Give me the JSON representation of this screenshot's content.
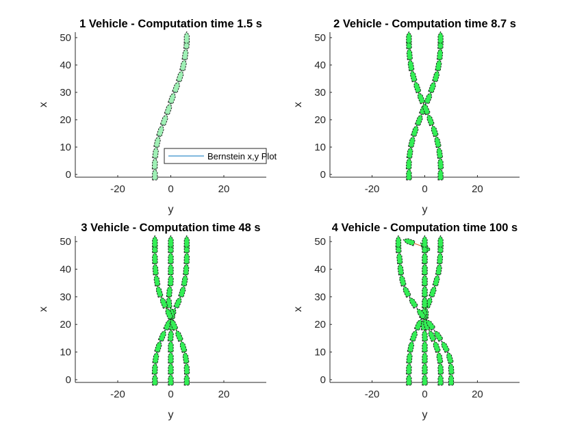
{
  "chart_data": [
    {
      "type": "line",
      "title": "1 Vehicle - Computation time 1.5 s",
      "xlabel": "y",
      "ylabel": "x",
      "xlim": [
        -36,
        36
      ],
      "ylim": [
        -1,
        52
      ],
      "xticks": [
        -20,
        0,
        20
      ],
      "yticks": [
        0,
        10,
        20,
        30,
        40,
        50
      ],
      "legend": {
        "label": "Bernstein x,y Plot",
        "location": "lower-right"
      },
      "series": [
        {
          "color": "#0072BD",
          "points": [
            [
              -6,
              0
            ],
            [
              -6,
              4
            ],
            [
              -5.7,
              8
            ],
            [
              -5,
              12
            ],
            [
              -3.8,
              16
            ],
            [
              -2.3,
              20
            ],
            [
              -0.8,
              24
            ],
            [
              0.6,
              28
            ],
            [
              2.2,
              32
            ],
            [
              3.6,
              36
            ],
            [
              4.8,
              40
            ],
            [
              5.5,
              44
            ],
            [
              6,
              48
            ],
            [
              6,
              50
            ]
          ]
        }
      ]
    },
    {
      "type": "line",
      "title": "2 Vehicle - Computation time 8.7 s",
      "xlabel": "y",
      "ylabel": "x",
      "xlim": [
        -36,
        36
      ],
      "ylim": [
        -1,
        52
      ],
      "xticks": [
        -20,
        0,
        20
      ],
      "yticks": [
        0,
        10,
        20,
        30,
        40,
        50
      ],
      "series": [
        {
          "color": "#0072BD",
          "points": [
            [
              -6,
              0
            ],
            [
              -6,
              4
            ],
            [
              -5.6,
              8
            ],
            [
              -4.8,
              12
            ],
            [
              -3.6,
              16
            ],
            [
              -2,
              20
            ],
            [
              -0.4,
              24
            ],
            [
              1.5,
              28
            ],
            [
              3,
              32
            ],
            [
              4.4,
              36
            ],
            [
              5.3,
              40
            ],
            [
              5.8,
              44
            ],
            [
              6,
              48
            ],
            [
              6,
              50
            ]
          ]
        },
        {
          "color": "#D95319",
          "points": [
            [
              6,
              0
            ],
            [
              6,
              4
            ],
            [
              5.6,
              8
            ],
            [
              4.8,
              12
            ],
            [
              3.6,
              16
            ],
            [
              2,
              20
            ],
            [
              0.4,
              24
            ],
            [
              -1.5,
              28
            ],
            [
              -3,
              32
            ],
            [
              -4.4,
              36
            ],
            [
              -5.3,
              40
            ],
            [
              -5.8,
              44
            ],
            [
              -6,
              48
            ],
            [
              -6,
              50
            ]
          ]
        }
      ]
    },
    {
      "type": "line",
      "title": "3 Vehicle - Computation time 48 s",
      "xlabel": "y",
      "ylabel": "x",
      "xlim": [
        -36,
        36
      ],
      "ylim": [
        -1,
        52
      ],
      "xticks": [
        -20,
        0,
        20
      ],
      "yticks": [
        0,
        10,
        20,
        30,
        40,
        50
      ],
      "series": [
        {
          "color": "#0072BD",
          "points": [
            [
              -6,
              0
            ],
            [
              -6,
              4
            ],
            [
              -5.6,
              8
            ],
            [
              -4.6,
              12
            ],
            [
              -3,
              16
            ],
            [
              -1,
              20
            ],
            [
              0.8,
              24
            ],
            [
              2.8,
              28
            ],
            [
              4.4,
              32
            ],
            [
              5.3,
              36
            ],
            [
              5.8,
              40
            ],
            [
              6,
              44
            ],
            [
              6,
              48
            ],
            [
              6,
              50
            ]
          ]
        },
        {
          "color": "#D95319",
          "points": [
            [
              0,
              0
            ],
            [
              0,
              4
            ],
            [
              0,
              8
            ],
            [
              0,
              12
            ],
            [
              0,
              16
            ],
            [
              0.6,
              20
            ],
            [
              0.3,
              24
            ],
            [
              -0.7,
              28
            ],
            [
              -0.5,
              32
            ],
            [
              0,
              36
            ],
            [
              0,
              40
            ],
            [
              0,
              44
            ],
            [
              0,
              48
            ],
            [
              0,
              50
            ]
          ]
        },
        {
          "color": "#EDB120",
          "points": [
            [
              6,
              0
            ],
            [
              6,
              4
            ],
            [
              5.6,
              8
            ],
            [
              4.6,
              12
            ],
            [
              3,
              16
            ],
            [
              1,
              20
            ],
            [
              -0.8,
              24
            ],
            [
              -2.8,
              28
            ],
            [
              -4.4,
              32
            ],
            [
              -5.3,
              36
            ],
            [
              -5.8,
              40
            ],
            [
              -6,
              44
            ],
            [
              -6,
              48
            ],
            [
              -6,
              50
            ]
          ]
        }
      ]
    },
    {
      "type": "line",
      "title": "4 Vehicle - Computation time 100 s",
      "xlabel": "y",
      "ylabel": "x",
      "xlim": [
        -36,
        36
      ],
      "ylim": [
        -1,
        52
      ],
      "xticks": [
        -20,
        0,
        20
      ],
      "yticks": [
        0,
        10,
        20,
        30,
        40,
        50
      ],
      "series": [
        {
          "color": "#0072BD",
          "points": [
            [
              -6,
              0
            ],
            [
              -6,
              4
            ],
            [
              -5.8,
              8
            ],
            [
              -5.2,
              12
            ],
            [
              -4,
              16
            ],
            [
              -2.2,
              20
            ],
            [
              -0.3,
              24
            ],
            [
              1.6,
              28
            ],
            [
              3.2,
              32
            ],
            [
              4.5,
              36
            ],
            [
              5.4,
              40
            ],
            [
              5.8,
              44
            ],
            [
              6,
              48
            ],
            [
              6,
              50
            ]
          ]
        },
        {
          "color": "#D95319",
          "points": [
            [
              0,
              0
            ],
            [
              0,
              4
            ],
            [
              0,
              8
            ],
            [
              0,
              12
            ],
            [
              0,
              16
            ],
            [
              -0.3,
              20
            ],
            [
              0.4,
              24
            ],
            [
              0,
              28
            ],
            [
              0,
              32
            ],
            [
              0,
              36
            ],
            [
              0,
              40
            ],
            [
              0,
              44
            ],
            [
              0,
              48
            ],
            [
              -6,
              50
            ]
          ]
        },
        {
          "color": "#EDB120",
          "points": [
            [
              6,
              0
            ],
            [
              6,
              4
            ],
            [
              5.6,
              8
            ],
            [
              4.4,
              12
            ],
            [
              2.6,
              16
            ],
            [
              0.6,
              20
            ],
            [
              -0.2,
              24
            ],
            [
              0,
              28
            ],
            [
              0,
              32
            ],
            [
              0,
              36
            ],
            [
              0,
              40
            ],
            [
              0,
              44
            ],
            [
              0,
              48
            ],
            [
              0,
              50
            ]
          ]
        },
        {
          "color": "#7E2F8E",
          "points": [
            [
              10,
              0
            ],
            [
              10,
              4
            ],
            [
              9.4,
              8
            ],
            [
              7.6,
              12
            ],
            [
              5,
              16
            ],
            [
              2,
              20
            ],
            [
              -1.5,
              24
            ],
            [
              -4.5,
              28
            ],
            [
              -7,
              32
            ],
            [
              -8.5,
              36
            ],
            [
              -9.2,
              40
            ],
            [
              -9.6,
              44
            ],
            [
              -10,
              48
            ],
            [
              -10,
              50
            ]
          ]
        }
      ]
    }
  ]
}
